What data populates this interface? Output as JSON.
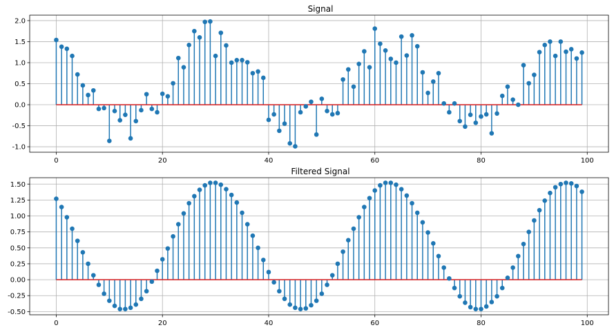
{
  "chart_data": [
    {
      "type": "stem",
      "title": "Signal",
      "xlabel": "",
      "ylabel": "",
      "xlim": [
        -5,
        104
      ],
      "ylim": [
        -1.13,
        2.13
      ],
      "xticks": [
        0,
        20,
        40,
        60,
        80,
        100
      ],
      "yticks": [
        -1.0,
        -0.5,
        0.0,
        0.5,
        1.0,
        1.5,
        2.0
      ],
      "ytick_labels": [
        "-1.0",
        "-0.5",
        "0.0",
        "0.5",
        "1.0",
        "1.5",
        "2.0"
      ],
      "grid": true,
      "baseline": 0,
      "colors": {
        "stem": "#1f77b4",
        "baseline": "#d62728"
      },
      "values": [
        1.54,
        1.38,
        1.33,
        1.16,
        0.72,
        0.46,
        0.23,
        0.34,
        -0.1,
        -0.08,
        -0.86,
        -0.15,
        -0.37,
        -0.24,
        -0.8,
        -0.39,
        -0.13,
        0.25,
        -0.1,
        -0.18,
        0.26,
        0.2,
        0.51,
        1.11,
        0.89,
        1.42,
        1.75,
        1.6,
        1.97,
        1.98,
        1.16,
        1.71,
        1.41,
        1.0,
        1.06,
        1.06,
        1.01,
        0.75,
        0.79,
        0.64,
        -0.36,
        -0.23,
        -0.62,
        -0.45,
        -0.92,
        -0.99,
        -0.18,
        -0.04,
        0.07,
        -0.71,
        0.14,
        -0.15,
        -0.23,
        -0.2,
        0.6,
        0.84,
        0.43,
        0.97,
        1.27,
        0.89,
        1.81,
        1.45,
        1.29,
        1.09,
        1.0,
        1.62,
        1.17,
        1.65,
        1.39,
        0.77,
        0.28,
        0.55,
        0.75,
        0.03,
        -0.18,
        0.03,
        -0.39,
        -0.52,
        -0.24,
        -0.43,
        -0.28,
        -0.23,
        -0.68,
        -0.21,
        0.21,
        0.43,
        0.12,
        0.0,
        0.94,
        0.51,
        0.71,
        1.25,
        1.42,
        1.5,
        1.16,
        1.5,
        1.26,
        1.32,
        1.1,
        1.24
      ]
    },
    {
      "type": "stem",
      "title": "Filtered Signal",
      "xlabel": "",
      "ylabel": "",
      "xlim": [
        -5,
        104
      ],
      "ylim": [
        -0.55,
        1.6
      ],
      "xticks": [
        0,
        20,
        40,
        60,
        80,
        100
      ],
      "yticks": [
        -0.5,
        -0.25,
        0.0,
        0.25,
        0.5,
        0.75,
        1.0,
        1.25,
        1.5
      ],
      "ytick_labels": [
        "-0.50",
        "-0.25",
        "0.00",
        "0.25",
        "0.50",
        "0.75",
        "1.00",
        "1.25",
        "1.50"
      ],
      "grid": true,
      "baseline": 0,
      "colors": {
        "stem": "#1f77b4",
        "baseline": "#d62728"
      },
      "values": [
        1.27,
        1.14,
        0.98,
        0.8,
        0.61,
        0.43,
        0.25,
        0.07,
        -0.08,
        -0.22,
        -0.33,
        -0.41,
        -0.46,
        -0.46,
        -0.44,
        -0.39,
        -0.3,
        -0.18,
        -0.03,
        0.14,
        0.32,
        0.49,
        0.68,
        0.87,
        1.04,
        1.2,
        1.31,
        1.41,
        1.48,
        1.52,
        1.52,
        1.49,
        1.42,
        1.33,
        1.21,
        1.05,
        0.87,
        0.69,
        0.5,
        0.31,
        0.12,
        -0.04,
        -0.18,
        -0.3,
        -0.39,
        -0.44,
        -0.46,
        -0.45,
        -0.4,
        -0.33,
        -0.22,
        -0.08,
        0.07,
        0.25,
        0.44,
        0.62,
        0.8,
        0.98,
        1.14,
        1.28,
        1.4,
        1.48,
        1.52,
        1.52,
        1.49,
        1.42,
        1.32,
        1.2,
        1.05,
        0.9,
        0.74,
        0.57,
        0.37,
        0.19,
        0.02,
        -0.13,
        -0.26,
        -0.36,
        -0.43,
        -0.46,
        -0.46,
        -0.42,
        -0.35,
        -0.26,
        -0.13,
        0.03,
        0.19,
        0.37,
        0.56,
        0.75,
        0.93,
        1.09,
        1.24,
        1.36,
        1.45,
        1.5,
        1.52,
        1.51,
        1.47,
        1.38
      ]
    }
  ]
}
